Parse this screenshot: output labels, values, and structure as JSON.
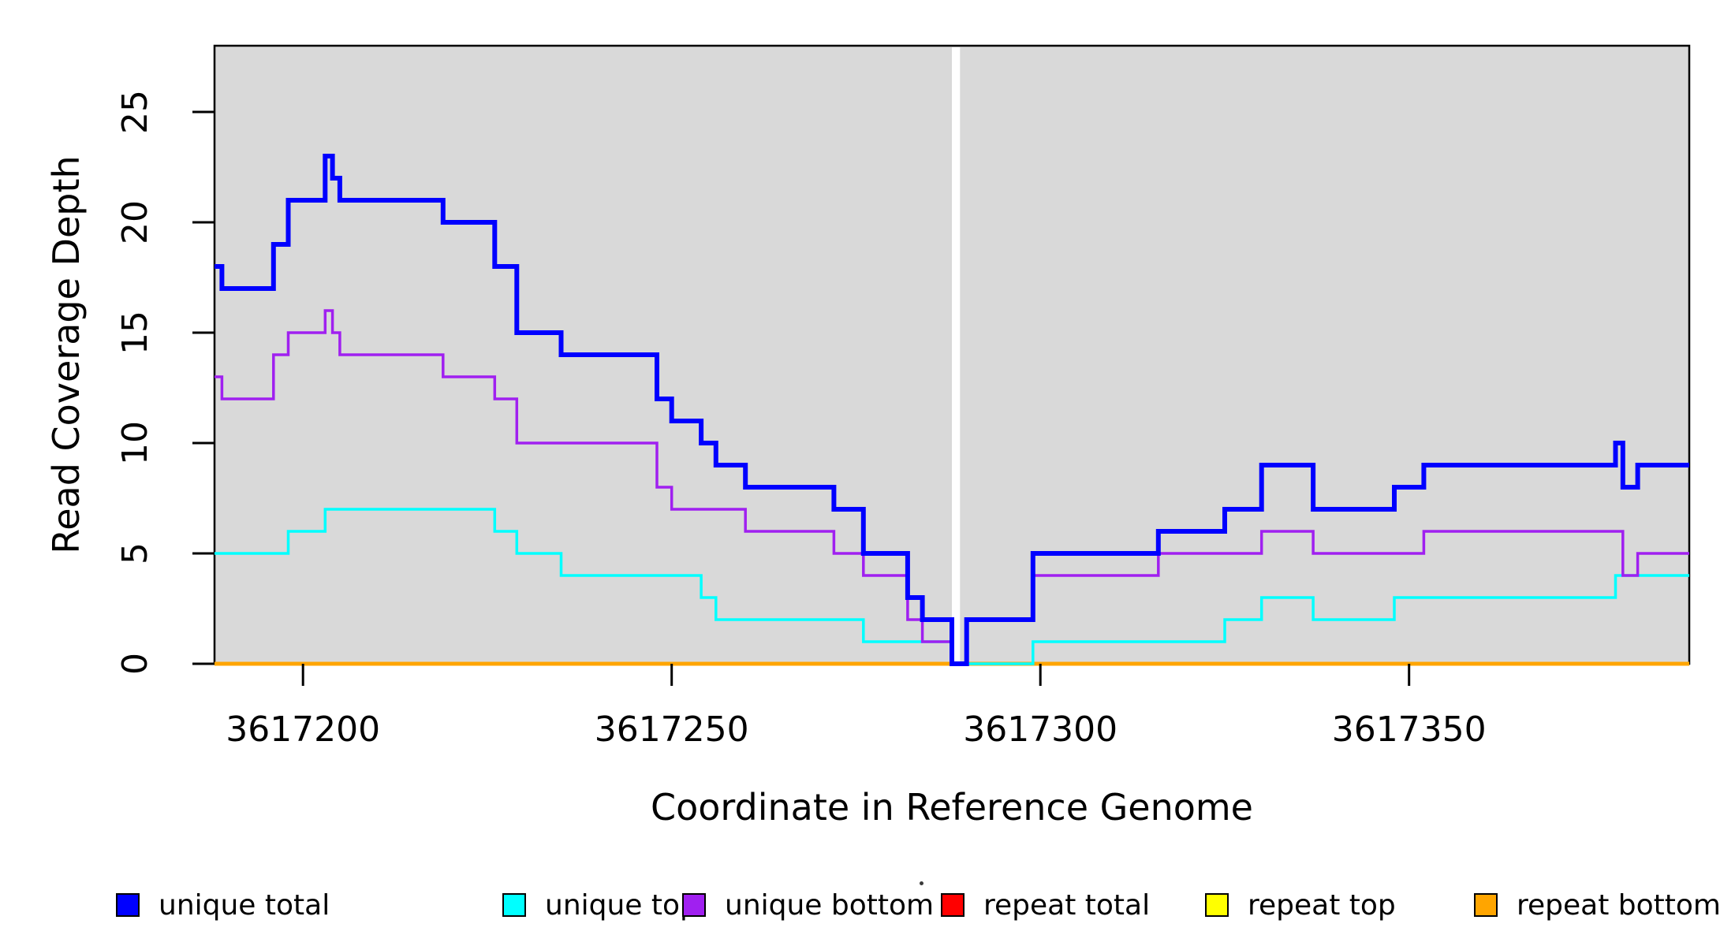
{
  "chart_data": {
    "type": "line",
    "subtype": "step",
    "title": "",
    "xlabel": "Coordinate in Reference Genome",
    "ylabel": "Read Coverage Depth",
    "xlim": [
      3617188,
      3617388
    ],
    "ylim": [
      0,
      28
    ],
    "x_ticks": [
      3617200,
      3617250,
      3617300,
      3617350
    ],
    "y_ticks": [
      0,
      5,
      10,
      15,
      20,
      25
    ],
    "plot_background": "#D9D9D9",
    "grid": "off",
    "legend_position": "bottom",
    "gap_band": {
      "x0": 3617288.0,
      "x1": 3617289.1,
      "color": "#FFFFFF"
    },
    "x_end": 3617388,
    "draw_order": [
      3,
      4,
      5,
      1,
      2,
      0
    ],
    "series": [
      {
        "name": "unique total",
        "color": "#0000FF",
        "lwd": 6,
        "steps": [
          [
            3617188,
            18
          ],
          [
            3617189,
            17
          ],
          [
            3617196,
            19
          ],
          [
            3617198,
            21
          ],
          [
            3617203,
            23
          ],
          [
            3617204,
            22
          ],
          [
            3617205,
            21
          ],
          [
            3617219,
            20
          ],
          [
            3617226,
            18
          ],
          [
            3617229,
            15
          ],
          [
            3617235,
            14
          ],
          [
            3617248,
            12
          ],
          [
            3617250,
            11
          ],
          [
            3617254,
            10
          ],
          [
            3617256,
            9
          ],
          [
            3617260,
            8
          ],
          [
            3617272,
            7
          ],
          [
            3617276,
            5
          ],
          [
            3617282,
            3
          ],
          [
            3617284,
            2
          ],
          [
            3617288,
            0
          ],
          [
            3617290,
            2
          ],
          [
            3617299,
            5
          ],
          [
            3617316,
            6
          ],
          [
            3617325,
            7
          ],
          [
            3617330,
            9
          ],
          [
            3617337,
            7
          ],
          [
            3617348,
            8
          ],
          [
            3617352,
            9
          ],
          [
            3617378,
            10
          ],
          [
            3617379,
            8
          ],
          [
            3617381,
            9
          ]
        ]
      },
      {
        "name": "unique top",
        "color": "#00FFFF",
        "lwd": 3.5,
        "steps": [
          [
            3617188,
            5
          ],
          [
            3617198,
            6
          ],
          [
            3617203,
            7
          ],
          [
            3617226,
            6
          ],
          [
            3617229,
            5
          ],
          [
            3617235,
            4
          ],
          [
            3617254,
            3
          ],
          [
            3617256,
            2
          ],
          [
            3617276,
            1
          ],
          [
            3617288,
            0
          ],
          [
            3617299,
            1
          ],
          [
            3617325,
            2
          ],
          [
            3617330,
            3
          ],
          [
            3617337,
            2
          ],
          [
            3617348,
            3
          ],
          [
            3617378,
            4
          ]
        ]
      },
      {
        "name": "unique bottom",
        "color": "#A020F0",
        "lwd": 3.5,
        "steps": [
          [
            3617188,
            13
          ],
          [
            3617189,
            12
          ],
          [
            3617196,
            14
          ],
          [
            3617198,
            15
          ],
          [
            3617203,
            16
          ],
          [
            3617204,
            15
          ],
          [
            3617205,
            14
          ],
          [
            3617219,
            13
          ],
          [
            3617226,
            12
          ],
          [
            3617229,
            10
          ],
          [
            3617248,
            8
          ],
          [
            3617250,
            7
          ],
          [
            3617260,
            6
          ],
          [
            3617272,
            5
          ],
          [
            3617276,
            4
          ],
          [
            3617282,
            2
          ],
          [
            3617284,
            1
          ],
          [
            3617288,
            0
          ],
          [
            3617290,
            2
          ],
          [
            3617299,
            4
          ],
          [
            3617316,
            5
          ],
          [
            3617330,
            6
          ],
          [
            3617337,
            5
          ],
          [
            3617352,
            6
          ],
          [
            3617379,
            4
          ],
          [
            3617381,
            5
          ]
        ]
      },
      {
        "name": "repeat total",
        "color": "#FF0000",
        "lwd": 3.5,
        "steps": [
          [
            3617188,
            0
          ]
        ]
      },
      {
        "name": "repeat top",
        "color": "#FFFF00",
        "lwd": 3.5,
        "steps": [
          [
            3617188,
            0
          ]
        ]
      },
      {
        "name": "repeat bottom",
        "color": "#FFA500",
        "lwd": 5,
        "steps": [
          [
            3617188,
            0
          ]
        ]
      }
    ]
  },
  "legend": {
    "items": [
      {
        "label": "unique total",
        "color": "#0000FF",
        "x": 147
      },
      {
        "label": "unique top",
        "color": "#00FFFF",
        "x": 637
      },
      {
        "label": "unique bottom",
        "color": "#A020F0",
        "x": 865
      },
      {
        "label": "repeat total",
        "color": "#FF0000",
        "x": 1193
      },
      {
        "label": "repeat top",
        "color": "#FFFF00",
        "x": 1528
      },
      {
        "label": "repeat bottom",
        "color": "#FFA500",
        "x": 1869
      }
    ]
  }
}
